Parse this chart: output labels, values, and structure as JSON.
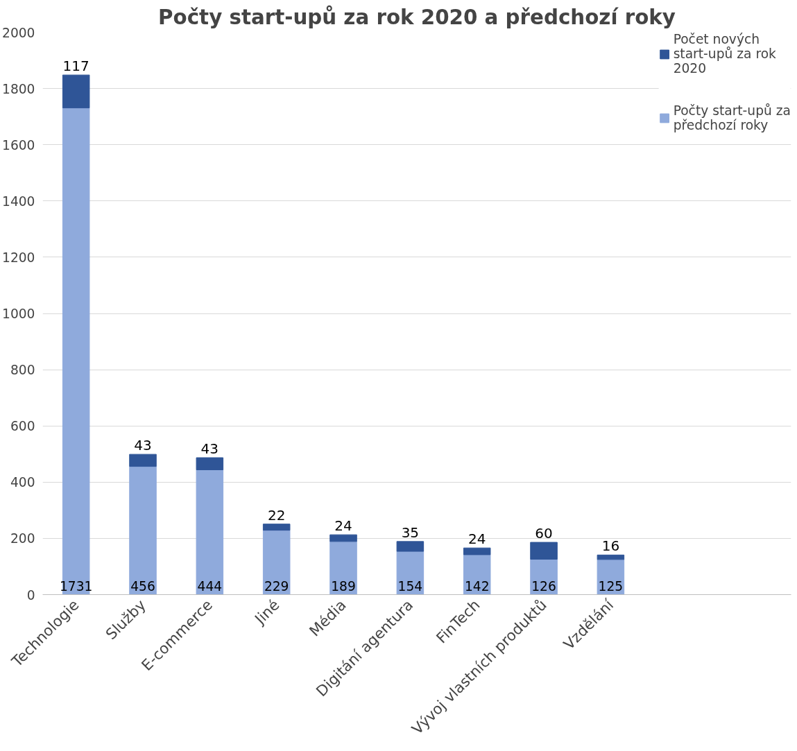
{
  "chart_data": {
    "type": "bar",
    "title": "Počty start-upů za rok 2020 a předchozí roky",
    "categories": [
      "Technologie",
      "Služby",
      "E-commerce",
      "Jiné",
      "Média",
      "Digitání agentura",
      "FinTech",
      "Vývoj vlastních produktů",
      "Vzdělání"
    ],
    "series": [
      {
        "name": "Počty start-upů za předchozí roky",
        "color": "#8faadc",
        "values": [
          1731,
          456,
          444,
          229,
          189,
          154,
          142,
          126,
          125
        ]
      },
      {
        "name": "Počet nových start-upů za rok 2020",
        "color": "#2f5597",
        "values": [
          117,
          43,
          43,
          22,
          24,
          35,
          24,
          60,
          16
        ]
      }
    ],
    "stacked": true,
    "data_labels": true,
    "ylim": [
      0,
      2000
    ],
    "yticks": [
      0,
      200,
      400,
      600,
      800,
      1000,
      1200,
      1400,
      1600,
      1800,
      2000
    ],
    "grid": "y",
    "legend": "right"
  }
}
